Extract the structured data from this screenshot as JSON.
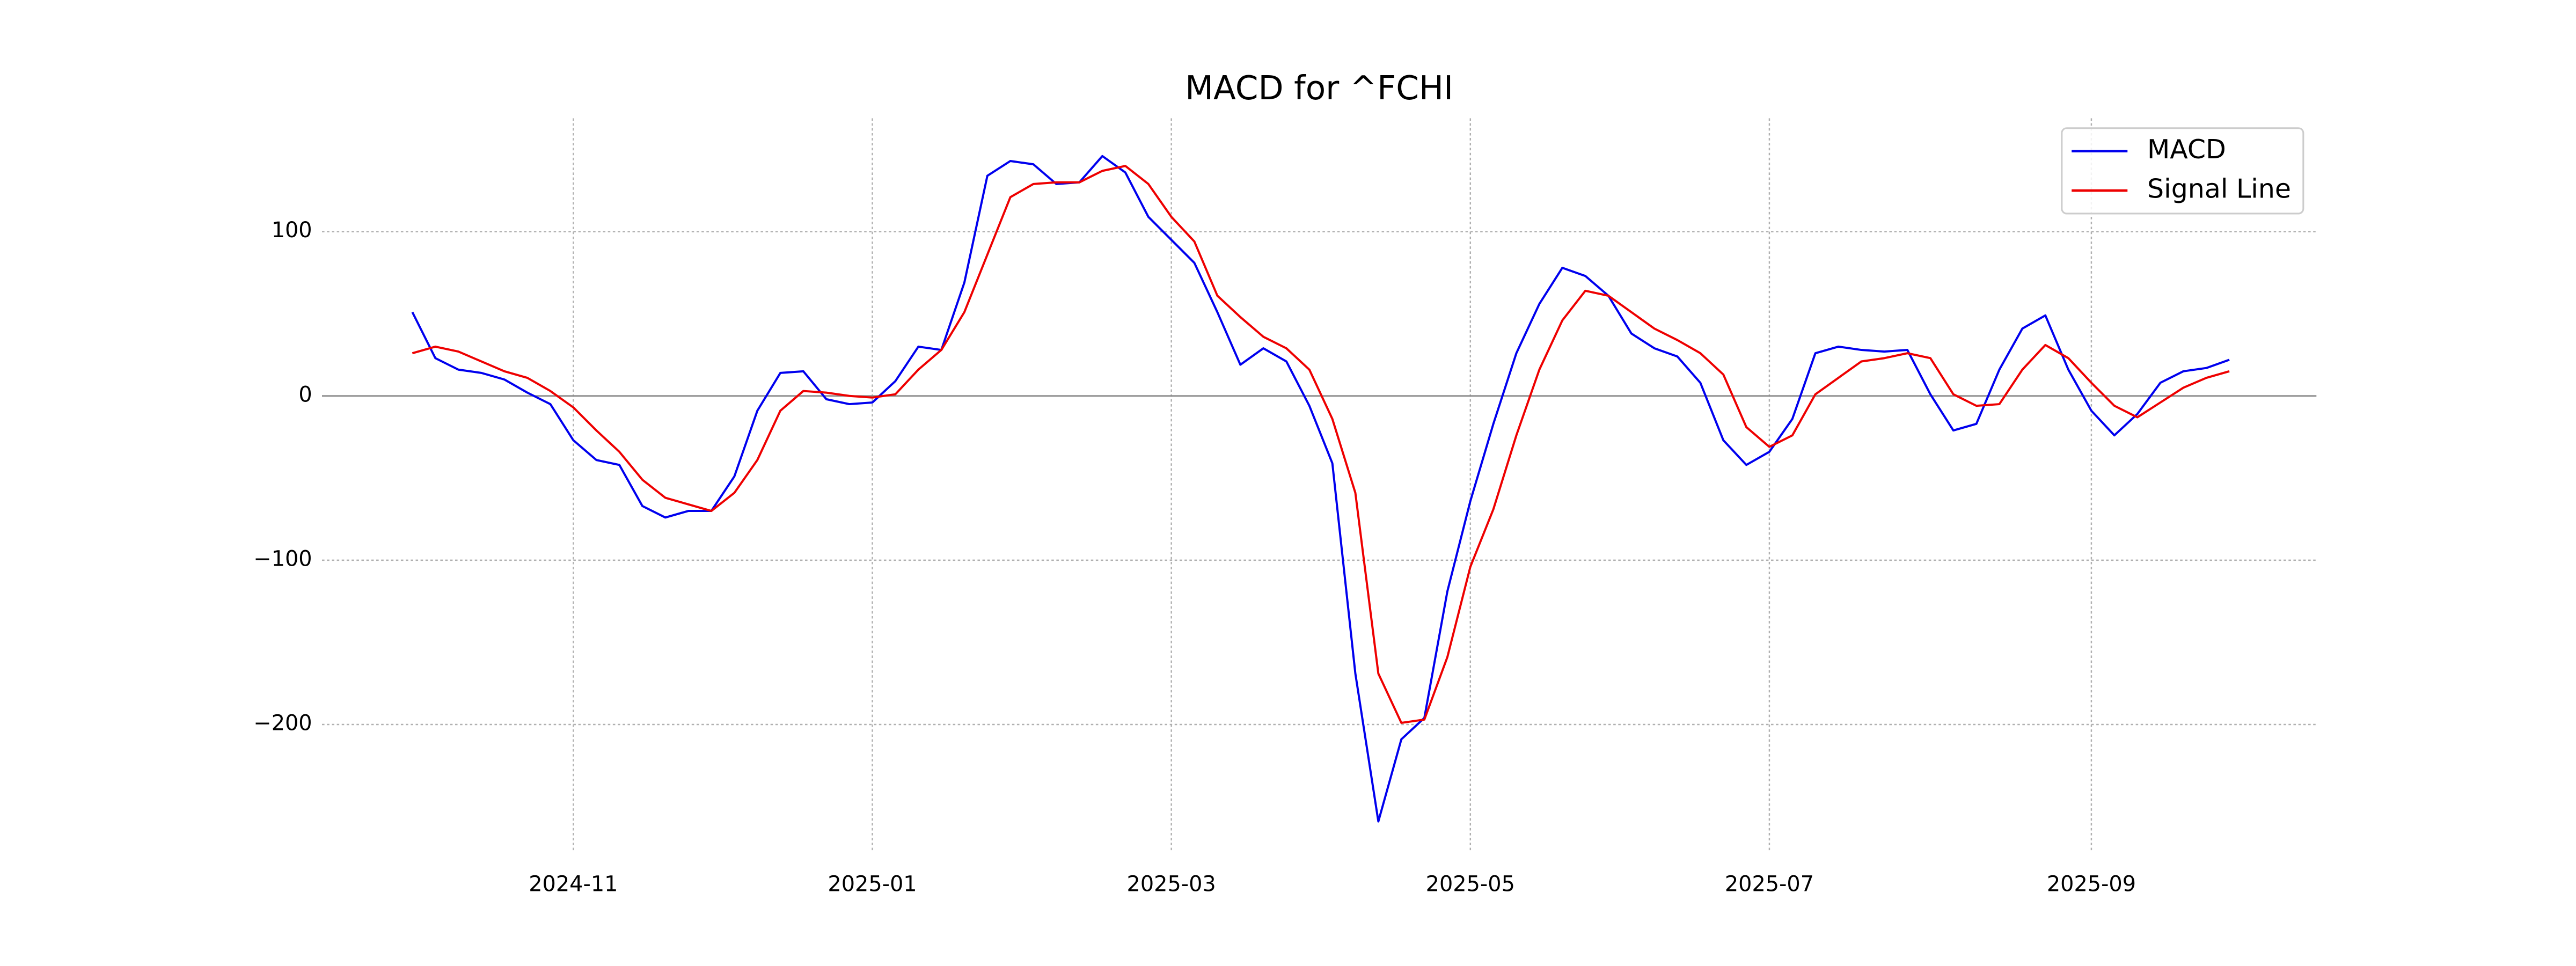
{
  "chart_data": {
    "type": "line",
    "title": "MACD for ^FCHI",
    "categories": [
      null,
      null,
      null,
      null,
      null,
      null,
      null,
      "2024-11",
      null,
      null,
      null,
      null,
      null,
      null,
      null,
      null,
      null,
      null,
      null,
      null,
      "2025-01",
      null,
      null,
      null,
      null,
      null,
      null,
      null,
      null,
      null,
      null,
      null,
      null,
      "2025-03",
      null,
      null,
      null,
      null,
      null,
      null,
      null,
      null,
      null,
      null,
      null,
      null,
      "2025-05",
      null,
      null,
      null,
      null,
      null,
      null,
      null,
      null,
      null,
      null,
      null,
      null,
      "2025-07",
      null,
      null,
      null,
      null,
      null,
      null,
      null,
      null,
      null,
      null,
      null,
      null,
      null,
      "2025-09",
      null,
      null,
      null,
      null,
      null,
      null
    ],
    "series": [
      {
        "name": "MACD",
        "color": "#0000ee",
        "values": [
          51,
          23,
          16,
          14,
          10,
          2,
          -5,
          -27,
          -39,
          -42,
          -67,
          -74,
          -70,
          -70,
          -49,
          -9,
          14,
          15,
          -2,
          -5,
          -4,
          9,
          30,
          28,
          69,
          134,
          143,
          141,
          129,
          130,
          146,
          136,
          109,
          95,
          81,
          51,
          19,
          29,
          21,
          -6,
          -41,
          -169,
          -259,
          -209,
          -196,
          -119,
          -64,
          -17,
          26,
          56,
          78,
          73,
          61,
          38,
          29,
          24,
          8,
          -27,
          -42,
          -34,
          -14,
          26,
          30,
          28,
          27,
          28,
          1,
          -21,
          -17,
          16,
          41,
          49,
          16,
          -9,
          -24,
          -11,
          8,
          15,
          17,
          22
        ]
      },
      {
        "name": "Signal Line",
        "color": "#ee0000",
        "values": [
          26,
          30,
          27,
          21,
          15,
          11,
          3,
          -7,
          -21,
          -34,
          -51,
          -62,
          -66,
          -70,
          -59,
          -39,
          -9,
          3,
          2,
          0,
          -1,
          1,
          16,
          28,
          51,
          86,
          121,
          129,
          130,
          130,
          137,
          140,
          129,
          109,
          94,
          61,
          48,
          36,
          29,
          16,
          -14,
          -59,
          -169,
          -199,
          -197,
          -159,
          -104,
          -69,
          -24,
          16,
          46,
          64,
          61,
          51,
          41,
          34,
          26,
          13,
          -19,
          -31,
          -24,
          1,
          11,
          21,
          23,
          26,
          23,
          1,
          -6,
          -5,
          16,
          31,
          23,
          8,
          -6,
          -13,
          -4,
          5,
          11,
          15
        ]
      }
    ],
    "ylim": [
      -277,
      169
    ],
    "yticks": [
      {
        "value": -200,
        "label": "−200"
      },
      {
        "value": -100,
        "label": "−100"
      },
      0,
      100
    ],
    "hline": 0,
    "grid": true,
    "legend": "upper right"
  }
}
